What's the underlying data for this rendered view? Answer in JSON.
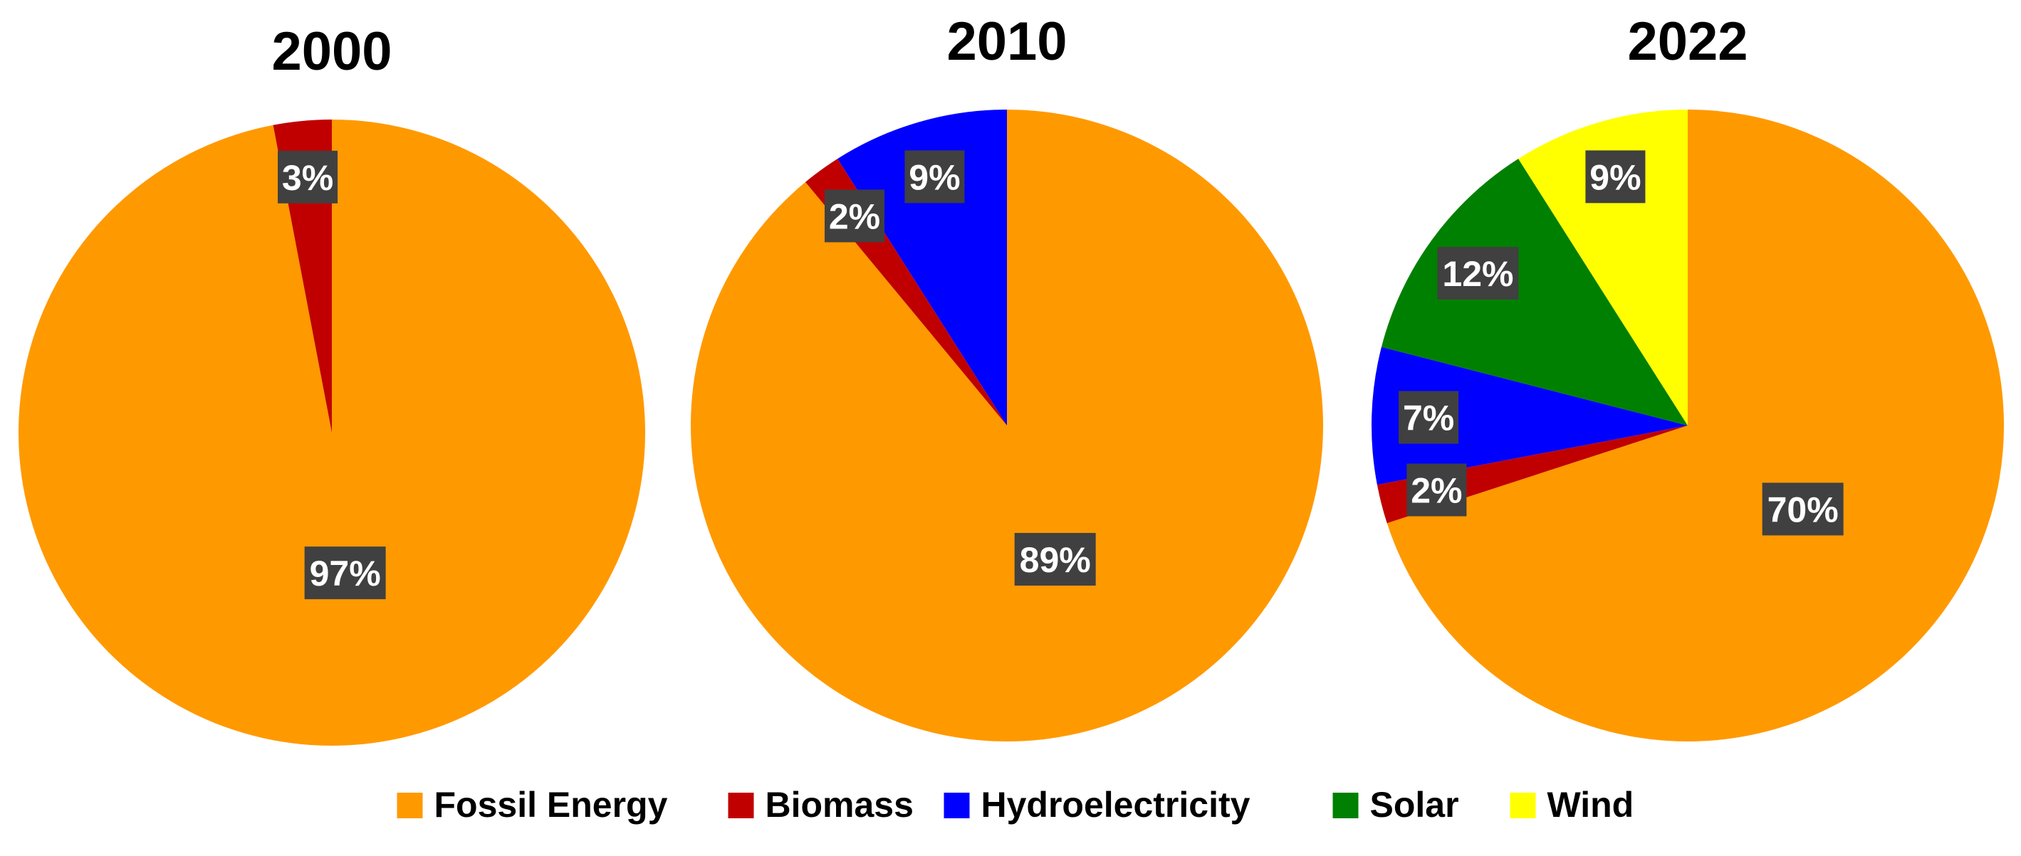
{
  "chart_data": {
    "type": "pie",
    "legend": {
      "position": "bottom",
      "entries": [
        {
          "name": "Fossil Energy",
          "color": "#FF9900"
        },
        {
          "name": "Biomass",
          "color": "#C00000"
        },
        {
          "name": "Hydroelectricity",
          "color": "#0000FF"
        },
        {
          "name": "Solar",
          "color": "#008000"
        },
        {
          "name": "Wind",
          "color": "#FFFF00"
        }
      ]
    },
    "charts": [
      {
        "title": "2000",
        "slices": [
          {
            "category": "Fossil Energy",
            "value": 97,
            "label": "97%"
          },
          {
            "category": "Biomass",
            "value": 3,
            "label": "3%"
          }
        ]
      },
      {
        "title": "2010",
        "slices": [
          {
            "category": "Fossil Energy",
            "value": 89,
            "label": "89%"
          },
          {
            "category": "Biomass",
            "value": 2,
            "label": "2%"
          },
          {
            "category": "Hydroelectricity",
            "value": 9,
            "label": "9%"
          }
        ]
      },
      {
        "title": "2022",
        "slices": [
          {
            "category": "Fossil Energy",
            "value": 70,
            "label": "70%"
          },
          {
            "category": "Biomass",
            "value": 2,
            "label": "2%"
          },
          {
            "category": "Hydroelectricity",
            "value": 7,
            "label": "7%"
          },
          {
            "category": "Solar",
            "value": 12,
            "label": "12%"
          },
          {
            "category": "Wind",
            "value": 9,
            "label": "9%"
          }
        ]
      }
    ]
  }
}
